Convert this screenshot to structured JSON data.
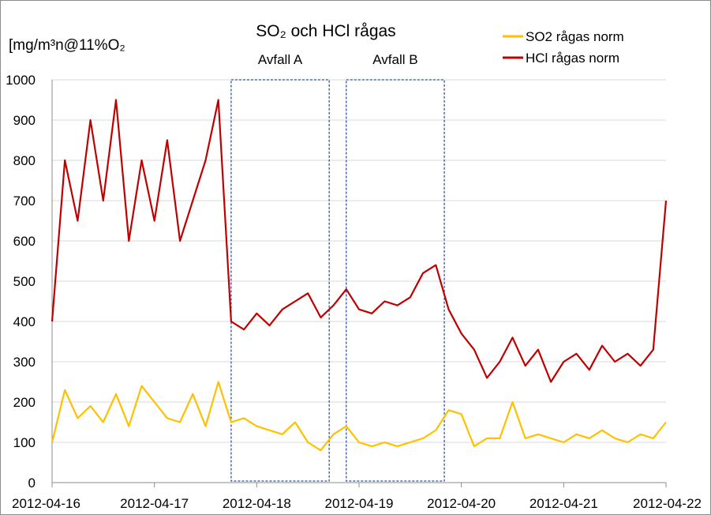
{
  "chart_data": {
    "type": "line",
    "title": "SO₂ och HCl rågas",
    "ylabel": "[mg/m³n@11%O₂",
    "xlabel": "",
    "ylim": [
      0,
      1000
    ],
    "yticks": [
      0,
      100,
      200,
      300,
      400,
      500,
      600,
      700,
      800,
      900,
      1000
    ],
    "xticks": [
      "2012-04-16",
      "2012-04-17",
      "2012-04-18",
      "2012-04-19",
      "2012-04-20",
      "2012-04-21",
      "2012-04-22"
    ],
    "grid": "horizontal",
    "legend_position": "top-right",
    "annotations": [
      {
        "label": "Avfall A",
        "x_from": "2012-04-17 18:00",
        "x_to": "2012-04-18 17:00"
      },
      {
        "label": "Avfall B",
        "x_from": "2012-04-18 21:00",
        "x_to": "2012-04-19 20:00"
      }
    ],
    "series": [
      {
        "name": "SO2 rågas norm",
        "color": "#FFC000",
        "points": [
          [
            "2012-04-16 00:00",
            100
          ],
          [
            "2012-04-16 03:00",
            230
          ],
          [
            "2012-04-16 06:00",
            160
          ],
          [
            "2012-04-16 09:00",
            190
          ],
          [
            "2012-04-16 12:00",
            150
          ],
          [
            "2012-04-16 15:00",
            220
          ],
          [
            "2012-04-16 18:00",
            140
          ],
          [
            "2012-04-16 21:00",
            240
          ],
          [
            "2012-04-17 00:00",
            200
          ],
          [
            "2012-04-17 03:00",
            160
          ],
          [
            "2012-04-17 06:00",
            150
          ],
          [
            "2012-04-17 09:00",
            220
          ],
          [
            "2012-04-17 12:00",
            140
          ],
          [
            "2012-04-17 15:00",
            250
          ],
          [
            "2012-04-17 18:00",
            150
          ],
          [
            "2012-04-17 21:00",
            160
          ],
          [
            "2012-04-18 00:00",
            140
          ],
          [
            "2012-04-18 03:00",
            130
          ],
          [
            "2012-04-18 06:00",
            120
          ],
          [
            "2012-04-18 09:00",
            150
          ],
          [
            "2012-04-18 12:00",
            100
          ],
          [
            "2012-04-18 15:00",
            80
          ],
          [
            "2012-04-18 18:00",
            120
          ],
          [
            "2012-04-18 21:00",
            140
          ],
          [
            "2012-04-19 00:00",
            100
          ],
          [
            "2012-04-19 03:00",
            90
          ],
          [
            "2012-04-19 06:00",
            100
          ],
          [
            "2012-04-19 09:00",
            90
          ],
          [
            "2012-04-19 12:00",
            100
          ],
          [
            "2012-04-19 15:00",
            110
          ],
          [
            "2012-04-19 18:00",
            130
          ],
          [
            "2012-04-19 21:00",
            180
          ],
          [
            "2012-04-20 00:00",
            170
          ],
          [
            "2012-04-20 03:00",
            90
          ],
          [
            "2012-04-20 06:00",
            110
          ],
          [
            "2012-04-20 09:00",
            110
          ],
          [
            "2012-04-20 12:00",
            200
          ],
          [
            "2012-04-20 15:00",
            110
          ],
          [
            "2012-04-20 18:00",
            120
          ],
          [
            "2012-04-20 21:00",
            110
          ],
          [
            "2012-04-21 00:00",
            100
          ],
          [
            "2012-04-21 03:00",
            120
          ],
          [
            "2012-04-21 06:00",
            110
          ],
          [
            "2012-04-21 09:00",
            130
          ],
          [
            "2012-04-21 12:00",
            110
          ],
          [
            "2012-04-21 15:00",
            100
          ],
          [
            "2012-04-21 18:00",
            120
          ],
          [
            "2012-04-21 21:00",
            110
          ],
          [
            "2012-04-22 00:00",
            150
          ]
        ]
      },
      {
        "name": "HCl rågas norm",
        "color": "#C00000",
        "points": [
          [
            "2012-04-16 00:00",
            400
          ],
          [
            "2012-04-16 03:00",
            800
          ],
          [
            "2012-04-16 06:00",
            650
          ],
          [
            "2012-04-16 09:00",
            900
          ],
          [
            "2012-04-16 12:00",
            700
          ],
          [
            "2012-04-16 15:00",
            950
          ],
          [
            "2012-04-16 18:00",
            600
          ],
          [
            "2012-04-16 21:00",
            800
          ],
          [
            "2012-04-17 00:00",
            650
          ],
          [
            "2012-04-17 03:00",
            850
          ],
          [
            "2012-04-17 06:00",
            600
          ],
          [
            "2012-04-17 09:00",
            700
          ],
          [
            "2012-04-17 12:00",
            800
          ],
          [
            "2012-04-17 15:00",
            950
          ],
          [
            "2012-04-17 18:00",
            400
          ],
          [
            "2012-04-17 21:00",
            380
          ],
          [
            "2012-04-18 00:00",
            420
          ],
          [
            "2012-04-18 03:00",
            390
          ],
          [
            "2012-04-18 06:00",
            430
          ],
          [
            "2012-04-18 09:00",
            450
          ],
          [
            "2012-04-18 12:00",
            470
          ],
          [
            "2012-04-18 15:00",
            410
          ],
          [
            "2012-04-18 18:00",
            440
          ],
          [
            "2012-04-18 21:00",
            480
          ],
          [
            "2012-04-19 00:00",
            430
          ],
          [
            "2012-04-19 03:00",
            420
          ],
          [
            "2012-04-19 06:00",
            450
          ],
          [
            "2012-04-19 09:00",
            440
          ],
          [
            "2012-04-19 12:00",
            460
          ],
          [
            "2012-04-19 15:00",
            520
          ],
          [
            "2012-04-19 18:00",
            540
          ],
          [
            "2012-04-19 21:00",
            430
          ],
          [
            "2012-04-20 00:00",
            370
          ],
          [
            "2012-04-20 03:00",
            330
          ],
          [
            "2012-04-20 06:00",
            260
          ],
          [
            "2012-04-20 09:00",
            300
          ],
          [
            "2012-04-20 12:00",
            360
          ],
          [
            "2012-04-20 15:00",
            290
          ],
          [
            "2012-04-20 18:00",
            330
          ],
          [
            "2012-04-20 21:00",
            250
          ],
          [
            "2012-04-21 00:00",
            300
          ],
          [
            "2012-04-21 03:00",
            320
          ],
          [
            "2012-04-21 06:00",
            280
          ],
          [
            "2012-04-21 09:00",
            340
          ],
          [
            "2012-04-21 12:00",
            300
          ],
          [
            "2012-04-21 15:00",
            320
          ],
          [
            "2012-04-21 18:00",
            290
          ],
          [
            "2012-04-21 21:00",
            330
          ],
          [
            "2012-04-22 00:00",
            700
          ]
        ]
      }
    ]
  }
}
